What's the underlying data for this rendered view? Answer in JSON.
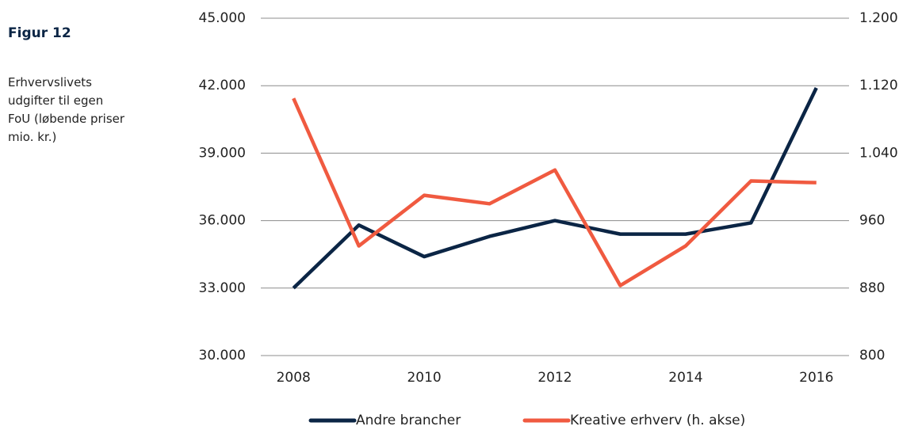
{
  "chart_data": {
    "type": "line",
    "title": "Figur 12",
    "subtitle": "Erhvervslivets udgifter til egen FoU (løbende priser mio. kr.)",
    "x": [
      2008,
      2009,
      2010,
      2011,
      2012,
      2013,
      2014,
      2015,
      2016
    ],
    "series": [
      {
        "name": "Andre brancher",
        "color": "#0b2545",
        "values": [
          33000,
          35800,
          34400,
          35300,
          36000,
          35400,
          35400,
          35900,
          41900
        ]
      },
      {
        "name": "Kreative erhverv (h. akse)",
        "color": "#f05a40",
        "axis": "y2",
        "values": [
          1105,
          930,
          990,
          980,
          1020,
          883,
          930,
          1007,
          1005
        ]
      }
    ],
    "xlim": [
      2007.5,
      2016.5
    ],
    "xticks": [
      2008,
      2010,
      2012,
      2014,
      2016
    ],
    "ylim": [
      30000,
      45000
    ],
    "yticks": [
      {
        "value": 30000,
        "label": "30.000"
      },
      {
        "value": 33000,
        "label": "33.000"
      },
      {
        "value": 36000,
        "label": "36.000"
      },
      {
        "value": 39000,
        "label": "39.000"
      },
      {
        "value": 42000,
        "label": "42.000"
      },
      {
        "value": 45000,
        "label": "45.000"
      }
    ],
    "y2lim": [
      800,
      1200
    ],
    "y2ticks": [
      800,
      880,
      960,
      {
        "value": 1040,
        "label": "1.040"
      },
      {
        "value": 1120,
        "label": "1.120"
      },
      {
        "value": 1200,
        "label": "1.200"
      }
    ],
    "grid": true,
    "legend": "bottom"
  }
}
